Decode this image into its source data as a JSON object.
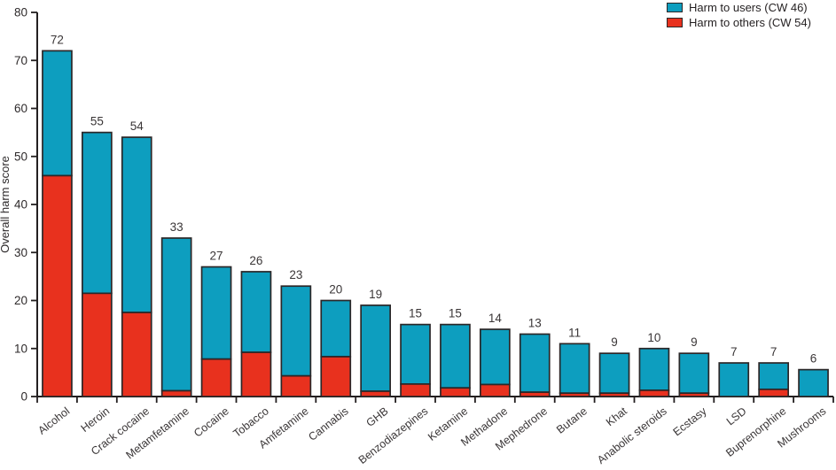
{
  "legend": {
    "items": [
      {
        "label": "Harm to users (CW 46)",
        "color": "#0D9EBF"
      },
      {
        "label": "Harm to others (CW 54)",
        "color": "#E8311E"
      }
    ]
  },
  "y_axis": {
    "label": "Overall harm score"
  },
  "chart_data": {
    "type": "bar",
    "stacked": true,
    "title": "",
    "xlabel": "",
    "ylabel": "Overall harm score",
    "ylim": [
      0,
      80
    ],
    "yticks": [
      0,
      10,
      20,
      30,
      40,
      50,
      60,
      70,
      80
    ],
    "grid": false,
    "legend_position": "top-right",
    "categories": [
      "Alcohol",
      "Heroin",
      "Crack cocaine",
      "Metamfetamine",
      "Cocaine",
      "Tobacco",
      "Amfetamine",
      "Cannabis",
      "GHB",
      "Benzodiazepines",
      "Ketamine",
      "Methadone",
      "Mephedrone",
      "Butane",
      "Khat",
      "Anabolic steroids",
      "Ecstasy",
      "LSD",
      "Buprenorphine",
      "Mushrooms"
    ],
    "series": [
      {
        "name": "Harm to users (CW 46)",
        "color": "#0D9EBF",
        "values": [
          26,
          33.5,
          36.5,
          31.8,
          19.2,
          16.8,
          18.7,
          11.7,
          17.9,
          12.4,
          13.2,
          11.5,
          12.1,
          10.3,
          8.3,
          8.7,
          8.3,
          7,
          5.5,
          5.6
        ]
      },
      {
        "name": "Harm to others (CW 54)",
        "color": "#E8311E",
        "values": [
          46,
          21.5,
          17.5,
          1.2,
          7.8,
          9.2,
          4.3,
          8.3,
          1.1,
          2.6,
          1.8,
          2.5,
          0.9,
          0.7,
          0.7,
          1.3,
          0.7,
          0,
          1.5,
          0
        ]
      }
    ],
    "bar_total_labels": [
      72,
      55,
      54,
      33,
      27,
      26,
      23,
      20,
      19,
      15,
      15,
      14,
      13,
      11,
      9,
      10,
      9,
      7,
      7,
      6
    ]
  },
  "colors": {
    "bar_outline": "#2B2728",
    "axis": "#231F20",
    "text": "#3A3637",
    "background": "#FFFFFF"
  }
}
